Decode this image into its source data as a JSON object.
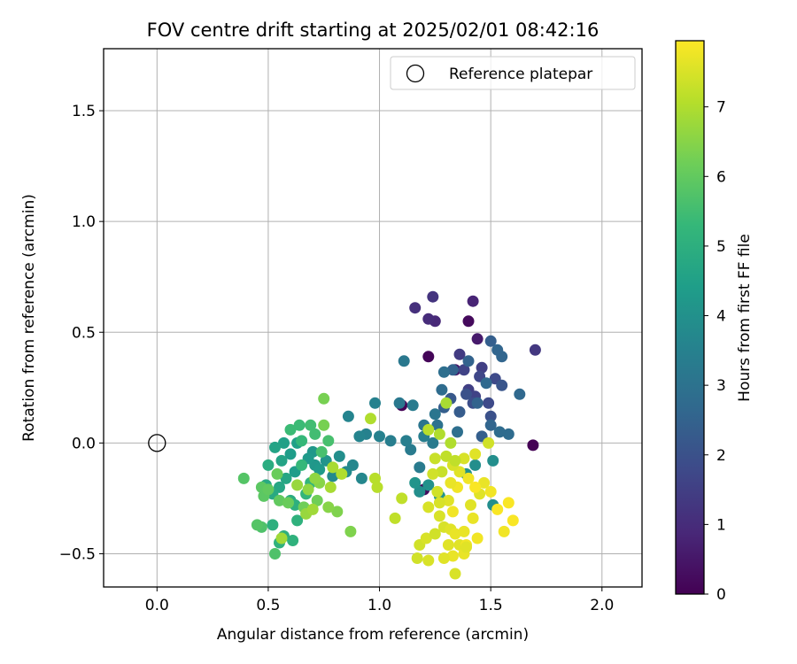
{
  "chart_data": {
    "type": "scatter",
    "title": "FOV centre drift starting at 2025/02/01 08:42:16",
    "xlabel": "Angular distance from reference (arcmin)",
    "ylabel": "Rotation from reference (arcmin)",
    "xlim": [
      -0.24,
      2.18
    ],
    "ylim": [
      -0.65,
      1.78
    ],
    "xticks": [
      0.0,
      0.5,
      1.0,
      1.5,
      2.0
    ],
    "xtick_labels": [
      "0.0",
      "0.5",
      "1.0",
      "1.5",
      "2.0"
    ],
    "yticks": [
      -0.5,
      0.0,
      0.5,
      1.0,
      1.5
    ],
    "ytick_labels": [
      "−0.5",
      "0.0",
      "0.5",
      "1.0",
      "1.5"
    ],
    "grid": true,
    "legend": {
      "placement": "top-right",
      "entries": [
        {
          "label": "Reference platepar",
          "marker": "open-circle",
          "x": 0.0,
          "y": 0.0
        }
      ]
    },
    "colorbar": {
      "label": "Hours from first FF file",
      "range": [
        0,
        7.95
      ],
      "ticks": [
        0,
        1,
        2,
        3,
        4,
        5,
        6,
        7
      ],
      "tick_labels": [
        "0",
        "1",
        "2",
        "3",
        "4",
        "5",
        "6",
        "7"
      ],
      "colormap": "viridis"
    },
    "colormap_stops": [
      "#440154",
      "#482878",
      "#3e4989",
      "#31688e",
      "#26828e",
      "#1f9e89",
      "#35b779",
      "#6ece58",
      "#b5de2b",
      "#fde725"
    ],
    "points": [
      [
        1.69,
        -0.01,
        0.0
      ],
      [
        1.1,
        0.17,
        0.05
      ],
      [
        1.22,
        0.39,
        0.1
      ],
      [
        1.4,
        0.55,
        0.2
      ],
      [
        1.2,
        -0.21,
        0.2
      ],
      [
        1.34,
        0.33,
        0.4
      ],
      [
        1.44,
        0.47,
        0.6
      ],
      [
        1.42,
        0.64,
        0.8
      ],
      [
        1.25,
        0.55,
        0.9
      ],
      [
        1.22,
        0.56,
        1.0
      ],
      [
        1.16,
        0.61,
        1.1
      ],
      [
        1.24,
        0.66,
        1.2
      ],
      [
        1.7,
        0.42,
        1.3
      ],
      [
        1.36,
        0.4,
        1.4
      ],
      [
        1.46,
        0.34,
        1.5
      ],
      [
        1.4,
        0.24,
        1.5
      ],
      [
        1.43,
        0.21,
        1.6
      ],
      [
        1.38,
        0.33,
        1.6
      ],
      [
        1.45,
        0.3,
        1.7
      ],
      [
        1.52,
        0.29,
        1.8
      ],
      [
        1.49,
        0.18,
        1.8
      ],
      [
        1.42,
        0.18,
        1.9
      ],
      [
        1.39,
        0.22,
        2.0
      ],
      [
        1.5,
        0.12,
        2.0
      ],
      [
        1.55,
        0.26,
        2.1
      ],
      [
        1.32,
        0.2,
        2.2
      ],
      [
        1.36,
        0.14,
        2.3
      ],
      [
        1.29,
        0.16,
        2.4
      ],
      [
        1.46,
        0.03,
        2.4
      ],
      [
        1.33,
        0.33,
        2.5
      ],
      [
        1.44,
        0.18,
        2.5
      ],
      [
        1.5,
        0.46,
        2.4
      ],
      [
        1.4,
        0.37,
        2.5
      ],
      [
        1.55,
        0.39,
        2.6
      ],
      [
        1.53,
        0.42,
        2.6
      ],
      [
        1.63,
        0.22,
        2.7
      ],
      [
        1.5,
        0.08,
        2.6
      ],
      [
        1.58,
        0.04,
        2.8
      ],
      [
        1.54,
        0.05,
        2.8
      ],
      [
        1.48,
        0.27,
        2.7
      ],
      [
        1.28,
        0.24,
        2.8
      ],
      [
        1.29,
        0.32,
        2.9
      ],
      [
        1.35,
        0.05,
        2.9
      ],
      [
        1.26,
        0.08,
        3.0
      ],
      [
        1.2,
        0.08,
        3.1
      ],
      [
        1.25,
        0.13,
        3.1
      ],
      [
        1.11,
        0.37,
        3.2
      ],
      [
        1.09,
        0.18,
        3.2
      ],
      [
        1.15,
        0.17,
        3.3
      ],
      [
        1.18,
        -0.11,
        3.3
      ],
      [
        1.14,
        -0.03,
        3.3
      ],
      [
        1.24,
        0.0,
        3.3
      ],
      [
        1.2,
        0.03,
        3.4
      ],
      [
        1.12,
        0.01,
        3.4
      ],
      [
        1.05,
        0.01,
        3.4
      ],
      [
        1.0,
        0.03,
        3.5
      ],
      [
        0.98,
        0.18,
        3.5
      ],
      [
        0.94,
        0.04,
        3.5
      ],
      [
        0.91,
        0.03,
        3.6
      ],
      [
        0.86,
        0.12,
        3.6
      ],
      [
        0.88,
        -0.1,
        3.7
      ],
      [
        0.92,
        -0.16,
        3.7
      ],
      [
        0.85,
        -0.13,
        3.8
      ],
      [
        0.79,
        -0.15,
        3.8
      ],
      [
        0.82,
        -0.06,
        3.9
      ],
      [
        1.18,
        -0.22,
        3.9
      ],
      [
        1.51,
        -0.28,
        3.9
      ],
      [
        1.51,
        -0.08,
        3.9
      ],
      [
        1.43,
        -0.1,
        3.9
      ],
      [
        1.39,
        -0.14,
        4.0
      ],
      [
        1.22,
        -0.19,
        4.0
      ],
      [
        1.16,
        -0.18,
        4.1
      ],
      [
        1.27,
        -0.24,
        4.1
      ],
      [
        0.76,
        -0.08,
        4.1
      ],
      [
        0.7,
        -0.04,
        4.2
      ],
      [
        0.71,
        -0.1,
        4.2
      ],
      [
        0.73,
        -0.12,
        4.3
      ],
      [
        0.68,
        -0.07,
        4.3
      ],
      [
        0.62,
        -0.13,
        4.4
      ],
      [
        0.6,
        -0.05,
        4.4
      ],
      [
        0.63,
        0.0,
        4.5
      ],
      [
        0.57,
        0.0,
        4.5
      ],
      [
        0.53,
        -0.02,
        4.6
      ],
      [
        0.56,
        -0.08,
        4.6
      ],
      [
        0.58,
        -0.16,
        4.7
      ],
      [
        0.55,
        -0.2,
        4.7
      ],
      [
        0.52,
        -0.23,
        4.8
      ],
      [
        0.49,
        -0.19,
        4.8
      ],
      [
        0.5,
        -0.1,
        4.9
      ],
      [
        0.6,
        -0.26,
        4.9
      ],
      [
        0.62,
        -0.28,
        5.0
      ],
      [
        0.57,
        -0.42,
        5.0
      ],
      [
        0.52,
        -0.37,
        5.0
      ],
      [
        0.55,
        -0.45,
        5.1
      ],
      [
        0.63,
        -0.35,
        5.1
      ],
      [
        0.61,
        -0.44,
        5.1
      ],
      [
        0.67,
        -0.23,
        5.2
      ],
      [
        0.69,
        -0.18,
        5.2
      ],
      [
        0.65,
        -0.1,
        5.3
      ],
      [
        0.65,
        0.01,
        5.3
      ],
      [
        0.6,
        0.06,
        5.4
      ],
      [
        0.64,
        0.08,
        5.4
      ],
      [
        0.71,
        0.04,
        5.5
      ],
      [
        0.69,
        0.08,
        5.5
      ],
      [
        0.74,
        -0.04,
        5.6
      ],
      [
        0.77,
        0.01,
        5.6
      ],
      [
        0.53,
        -0.5,
        5.7
      ],
      [
        0.47,
        -0.38,
        5.7
      ],
      [
        0.45,
        -0.37,
        5.8
      ],
      [
        0.39,
        -0.16,
        5.8
      ],
      [
        0.47,
        -0.2,
        5.9
      ],
      [
        0.48,
        -0.24,
        5.9
      ],
      [
        0.5,
        -0.21,
        6.0
      ],
      [
        0.55,
        -0.26,
        6.0
      ],
      [
        0.54,
        -0.14,
        6.1
      ],
      [
        0.59,
        -0.27,
        6.1
      ],
      [
        0.66,
        -0.29,
        6.2
      ],
      [
        0.72,
        -0.26,
        6.2
      ],
      [
        0.75,
        0.08,
        6.3
      ],
      [
        0.75,
        0.2,
        6.3
      ],
      [
        0.87,
        -0.4,
        6.4
      ],
      [
        0.81,
        -0.31,
        6.4
      ],
      [
        0.77,
        -0.29,
        6.5
      ],
      [
        0.73,
        -0.18,
        6.5
      ],
      [
        0.71,
        -0.16,
        6.6
      ],
      [
        0.68,
        -0.21,
        6.6
      ],
      [
        0.63,
        -0.19,
        6.7
      ],
      [
        0.67,
        -0.32,
        6.7
      ],
      [
        0.7,
        -0.3,
        6.8
      ],
      [
        0.56,
        -0.43,
        6.8
      ],
      [
        0.78,
        -0.2,
        6.9
      ],
      [
        0.79,
        -0.11,
        6.9
      ],
      [
        0.83,
        -0.14,
        7.0
      ],
      [
        0.96,
        0.11,
        7.0
      ],
      [
        0.98,
        -0.16,
        7.1
      ],
      [
        0.99,
        -0.2,
        7.1
      ],
      [
        1.07,
        -0.34,
        7.2
      ],
      [
        1.1,
        -0.25,
        7.2
      ],
      [
        1.22,
        0.06,
        7.1
      ],
      [
        1.27,
        0.04,
        7.0
      ],
      [
        1.3,
        0.18,
        6.9
      ],
      [
        1.32,
        0.0,
        7.0
      ],
      [
        1.3,
        -0.06,
        7.2
      ],
      [
        1.28,
        -0.13,
        7.3
      ],
      [
        1.25,
        -0.07,
        7.3
      ],
      [
        1.24,
        -0.14,
        7.4
      ],
      [
        1.26,
        -0.22,
        7.4
      ],
      [
        1.22,
        -0.29,
        7.5
      ],
      [
        1.27,
        -0.33,
        7.5
      ],
      [
        1.29,
        -0.38,
        7.5
      ],
      [
        1.32,
        -0.39,
        7.6
      ],
      [
        1.31,
        -0.46,
        7.6
      ],
      [
        1.36,
        -0.46,
        7.6
      ],
      [
        1.34,
        -0.41,
        7.7
      ],
      [
        1.38,
        -0.4,
        7.7
      ],
      [
        1.42,
        -0.34,
        7.7
      ],
      [
        1.41,
        -0.28,
        7.6
      ],
      [
        1.45,
        -0.23,
        7.6
      ],
      [
        1.47,
        -0.18,
        7.7
      ],
      [
        1.4,
        -0.16,
        7.8
      ],
      [
        1.35,
        -0.2,
        7.8
      ],
      [
        1.36,
        -0.13,
        7.6
      ],
      [
        1.32,
        -0.18,
        7.7
      ],
      [
        1.38,
        -0.07,
        7.5
      ],
      [
        1.33,
        -0.1,
        7.5
      ],
      [
        1.43,
        -0.05,
        7.6
      ],
      [
        1.49,
        0.0,
        7.4
      ],
      [
        1.5,
        -0.22,
        7.8
      ],
      [
        1.53,
        -0.3,
        7.9
      ],
      [
        1.58,
        -0.27,
        7.9
      ],
      [
        1.6,
        -0.35,
        7.9
      ],
      [
        1.56,
        -0.4,
        7.8
      ],
      [
        1.44,
        -0.43,
        7.8
      ],
      [
        1.39,
        -0.46,
        7.8
      ],
      [
        1.38,
        -0.5,
        7.7
      ],
      [
        1.33,
        -0.51,
        7.7
      ],
      [
        1.29,
        -0.52,
        7.6
      ],
      [
        1.22,
        -0.53,
        7.5
      ],
      [
        1.17,
        -0.52,
        7.4
      ],
      [
        1.18,
        -0.46,
        7.4
      ],
      [
        1.21,
        -0.43,
        7.5
      ],
      [
        1.25,
        -0.41,
        7.4
      ],
      [
        1.34,
        -0.59,
        7.5
      ],
      [
        1.39,
        -0.47,
        7.6
      ],
      [
        1.33,
        -0.31,
        7.8
      ],
      [
        1.43,
        -0.2,
        7.9
      ],
      [
        1.31,
        -0.26,
        7.6
      ],
      [
        1.27,
        -0.27,
        7.5
      ],
      [
        1.34,
        -0.08,
        7.2
      ]
    ]
  }
}
